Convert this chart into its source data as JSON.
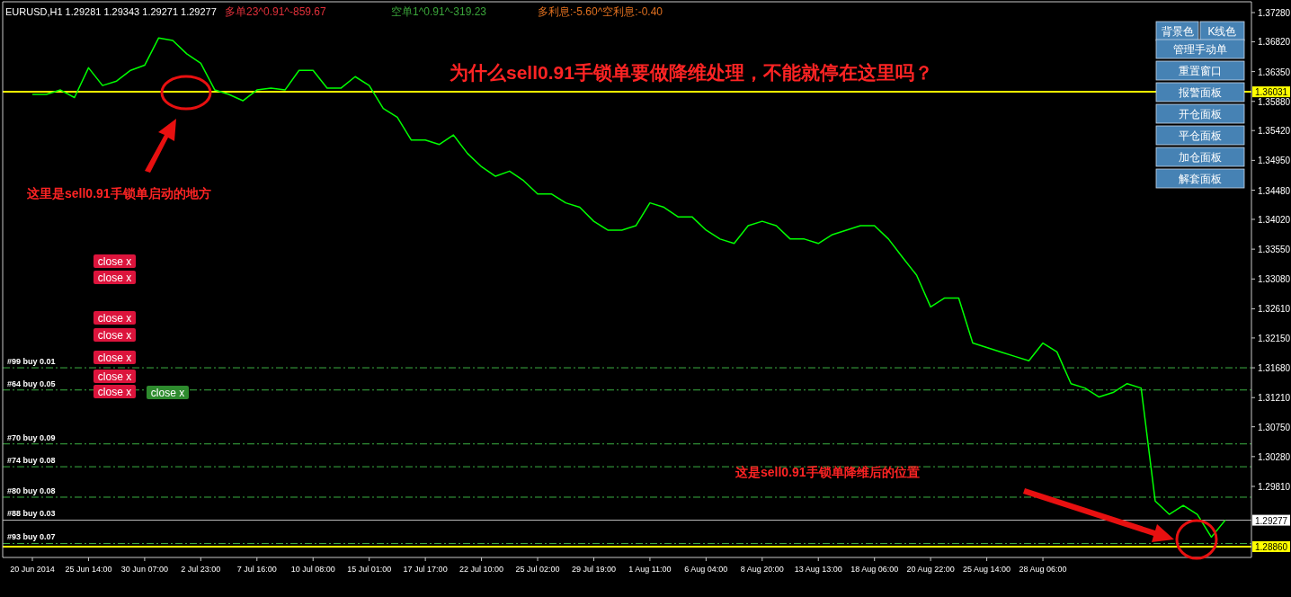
{
  "chart_data": {
    "type": "line",
    "title": "EURUSD,H1  1.29281 1.29343 1.29271 1.29277",
    "categories": [
      "20 Jun 2014",
      null,
      null,
      null,
      "25 Jun 14:00",
      null,
      null,
      null,
      "30 Jun 07:00",
      null,
      null,
      null,
      "2 Jul 23:00",
      null,
      null,
      null,
      "7 Jul 16:00",
      null,
      null,
      null,
      "10 Jul 08:00",
      null,
      null,
      null,
      "15 Jul 01:00",
      null,
      null,
      null,
      "17 Jul 17:00",
      null,
      null,
      null,
      "22 Jul 10:00",
      null,
      null,
      null,
      "25 Jul 02:00",
      null,
      null,
      null,
      "29 Jul 19:00",
      null,
      null,
      null,
      "1 Aug 11:00",
      null,
      null,
      null,
      "6 Aug 04:00",
      null,
      null,
      null,
      "8 Aug 20:00",
      null,
      null,
      null,
      "13 Aug 13:00",
      null,
      null,
      null,
      "18 Aug 06:00",
      null,
      null,
      null,
      "20 Aug 22:00",
      null,
      null,
      null,
      "25 Aug 14:00",
      null,
      null,
      null,
      "28 Aug 06:00",
      null,
      null,
      null,
      null,
      null,
      null,
      null,
      null,
      null,
      null,
      null,
      null,
      null
    ],
    "series": [
      {
        "color": "#00ff00",
        "values": [
          1.3599,
          1.3599,
          1.3606,
          1.3594,
          1.3641,
          1.3613,
          1.362,
          1.3637,
          1.3645,
          1.3688,
          1.3684,
          1.3663,
          1.3648,
          1.3606,
          1.3599,
          1.3589,
          1.3606,
          1.3609,
          1.3606,
          1.3637,
          1.3637,
          1.3609,
          1.3609,
          1.3627,
          1.3613,
          1.3577,
          1.3563,
          1.3527,
          1.3527,
          1.352,
          1.3535,
          1.3506,
          1.3485,
          1.347,
          1.3478,
          1.3463,
          1.3442,
          1.3442,
          1.3428,
          1.3421,
          1.3399,
          1.3385,
          1.3385,
          1.3392,
          1.3428,
          1.3421,
          1.3406,
          1.3406,
          1.3385,
          1.3371,
          1.3364,
          1.3392,
          1.3399,
          1.3392,
          1.3371,
          1.3371,
          1.3364,
          1.3378,
          1.3385,
          1.3392,
          1.3392,
          1.3371,
          1.3342,
          1.3314,
          1.3264,
          1.3278,
          1.3278,
          1.3207,
          1.32,
          1.3193,
          1.3186,
          1.3179,
          1.3207,
          1.3193,
          1.3143,
          1.3136,
          1.3122,
          1.3129,
          1.3143,
          1.3136,
          1.2958,
          1.2937,
          1.2951,
          1.2937,
          1.2901,
          1.2928
        ]
      }
    ],
    "ylim": [
      1.2869,
      1.3745
    ],
    "yticks": [
      {
        "value": 1.3728,
        "label": "1.37280"
      },
      {
        "value": 1.3682,
        "label": "1.36820"
      },
      {
        "value": 1.3635,
        "label": "1.36350"
      },
      {
        "value": 1.3588,
        "label": "1.35880"
      },
      {
        "value": 1.3542,
        "label": "1.35420"
      },
      {
        "value": 1.3495,
        "label": "1.34950"
      },
      {
        "value": 1.3448,
        "label": "1.34480"
      },
      {
        "value": 1.3402,
        "label": "1.34020"
      },
      {
        "value": 1.3355,
        "label": "1.33550"
      },
      {
        "value": 1.3308,
        "label": "1.33080"
      },
      {
        "value": 1.3261,
        "label": "1.32610"
      },
      {
        "value": 1.3215,
        "label": "1.32150"
      },
      {
        "value": 1.3168,
        "label": "1.31680"
      },
      {
        "value": 1.3121,
        "label": "1.31210"
      },
      {
        "value": 1.3075,
        "label": "1.30750"
      },
      {
        "value": 1.3028,
        "label": "1.30280"
      },
      {
        "value": 1.2981,
        "label": "1.29810"
      }
    ],
    "ref_lines": [
      {
        "axis": "y",
        "value": 1.36031,
        "label": "1.36031",
        "color": "#ffff00",
        "line_style": "solid"
      },
      {
        "axis": "y",
        "value": 1.2886,
        "label": "1.28860",
        "color": "#ffff00",
        "line_style": "solid"
      },
      {
        "axis": "y",
        "value": 1.29277,
        "label": "1.29277",
        "color": "#c0c0c0",
        "line_style": "solid"
      },
      {
        "axis": "y",
        "value": 1.3168,
        "label": "#99 buy 0.01",
        "color": "#3cb043",
        "line_style": "dashed"
      },
      {
        "axis": "y",
        "value": 1.3133,
        "label": "#64 buy 0.05",
        "color": "#3cb043",
        "line_style": "dashed"
      },
      {
        "axis": "y",
        "value": 1.3048,
        "label": "#70 buy 0.09",
        "color": "#3cb043",
        "line_style": "dashed"
      },
      {
        "axis": "y",
        "value": 1.3012,
        "label": "#74 buy 0.08",
        "color": "#3cb043",
        "line_style": "dashed"
      },
      {
        "axis": "y",
        "value": 1.2964,
        "label": "#80 buy 0.08",
        "color": "#3cb043",
        "line_style": "dashed"
      },
      {
        "axis": "y",
        "value": 1.2891,
        "label": "#93 buy 0.07",
        "color": "#3cb043",
        "line_style": "dashed"
      }
    ],
    "annotations": [
      "多单23^0.91^-859.67",
      "空单1^0.91^-319.23",
      "多利息:-5.60^空利息:-0.40",
      "为什么sell0.91手锁单要做降维处理，不能就停在这里吗？",
      "这里是sell0.91手锁单启动的地方",
      "这是sell0.91手锁单降维后的位置",
      "close x",
      "close x",
      "close x",
      "close x",
      "close x",
      "close x",
      "close x",
      "close x",
      "背景色",
      "K线色",
      "管理手动单",
      "重置窗口",
      "报警面板",
      "开仓面板",
      "平仓面板",
      "加仓面板",
      "解套面板",
      {
        "text": "#88 buy 0.03",
        "y": 1.2928
      }
    ],
    "grid": false,
    "marker": "none",
    "line_style": "solid"
  }
}
